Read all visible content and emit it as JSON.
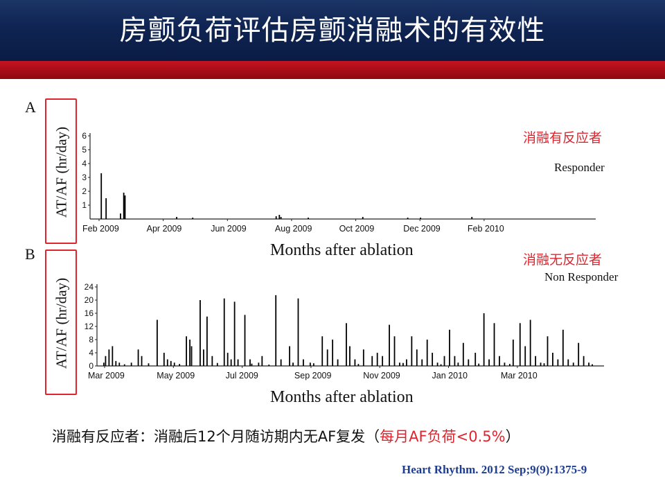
{
  "slide": {
    "title": "房颤负荷评估房颤消融术的有效性",
    "footnote_main": "消融有反应者：消融后12个月随访期内无AF复发（",
    "footnote_highlight": "每月AF负荷<0.5%",
    "footnote_end": "）",
    "citation": "Heart Rhythm. 2012 Sep;9(9):1375-9",
    "colors": {
      "title_band": "#0f2452",
      "accent_band": "#a40c16",
      "highlight": "#e0242e",
      "citation": "#1f3d8f"
    }
  },
  "chart_data": [
    {
      "type": "bar",
      "panel": "A",
      "annotation_cn": "消融有反应者",
      "annotation_en": "Responder",
      "xlabel": "Months after ablation",
      "ylabel": "AT/AF (hr/day)",
      "ylim": [
        0,
        6
      ],
      "yticks": [
        1,
        2,
        3,
        4,
        5,
        6
      ],
      "x_range_months": [
        0,
        15.5
      ],
      "xticks": [
        {
          "month": 0,
          "label": "Feb 2009"
        },
        {
          "month": 2,
          "label": "Apr 2009"
        },
        {
          "month": 4,
          "label": "Jun 2009"
        },
        {
          "month": 6,
          "label": "Aug 2009"
        },
        {
          "month": 8,
          "label": "Oct 2009"
        },
        {
          "month": 10,
          "label": "Dec 2009"
        },
        {
          "month": 12,
          "label": "Feb 2010"
        }
      ],
      "bars": [
        {
          "x": 0.35,
          "y": 3.3
        },
        {
          "x": 0.5,
          "y": 1.5
        },
        {
          "x": 0.95,
          "y": 0.4
        },
        {
          "x": 1.05,
          "y": 1.9
        },
        {
          "x": 1.09,
          "y": 1.7
        },
        {
          "x": 2.7,
          "y": 0.15
        },
        {
          "x": 3.2,
          "y": 0.1
        },
        {
          "x": 5.8,
          "y": 0.2
        },
        {
          "x": 5.9,
          "y": 0.3
        },
        {
          "x": 5.95,
          "y": 0.15
        },
        {
          "x": 6.8,
          "y": 0.1
        },
        {
          "x": 8.5,
          "y": 0.15
        },
        {
          "x": 9.9,
          "y": 0.1
        },
        {
          "x": 10.3,
          "y": 0.1
        },
        {
          "x": 11.9,
          "y": 0.15
        }
      ]
    },
    {
      "type": "bar",
      "panel": "B",
      "annotation_cn": "消融无反应者",
      "annotation_en": "Non Responder",
      "xlabel": "Months after ablation",
      "ylabel": "AT/AF (hr/day)",
      "ylim": [
        0,
        24
      ],
      "yticks": [
        0,
        4,
        8,
        12,
        16,
        20,
        24
      ],
      "x_range_months": [
        0,
        14.5
      ],
      "xticks": [
        {
          "month": 0,
          "label": "Mar 2009"
        },
        {
          "month": 2,
          "label": "May 2009"
        },
        {
          "month": 4,
          "label": "Jul 2009"
        },
        {
          "month": 6,
          "label": "Sep 2009"
        },
        {
          "month": 8,
          "label": "Nov 2009"
        },
        {
          "month": 10,
          "label": "Jan 2010"
        },
        {
          "month": 12,
          "label": "Mar 2010"
        }
      ],
      "bars": [
        {
          "x": 0.25,
          "y": 3
        },
        {
          "x": 0.35,
          "y": 5
        },
        {
          "x": 0.45,
          "y": 6
        },
        {
          "x": 0.55,
          "y": 1.5
        },
        {
          "x": 0.65,
          "y": 1
        },
        {
          "x": 1.0,
          "y": 1
        },
        {
          "x": 1.2,
          "y": 5
        },
        {
          "x": 1.3,
          "y": 3
        },
        {
          "x": 1.75,
          "y": 14
        },
        {
          "x": 1.95,
          "y": 4
        },
        {
          "x": 2.05,
          "y": 2
        },
        {
          "x": 2.15,
          "y": 1.5
        },
        {
          "x": 2.25,
          "y": 1
        },
        {
          "x": 2.6,
          "y": 9
        },
        {
          "x": 2.7,
          "y": 8
        },
        {
          "x": 2.75,
          "y": 6
        },
        {
          "x": 3.0,
          "y": 20
        },
        {
          "x": 3.1,
          "y": 5
        },
        {
          "x": 3.2,
          "y": 15
        },
        {
          "x": 3.35,
          "y": 3
        },
        {
          "x": 3.7,
          "y": 20.5
        },
        {
          "x": 3.8,
          "y": 4
        },
        {
          "x": 3.9,
          "y": 2
        },
        {
          "x": 4.0,
          "y": 19.5
        },
        {
          "x": 4.1,
          "y": 2
        },
        {
          "x": 4.3,
          "y": 15.5
        },
        {
          "x": 4.45,
          "y": 2
        },
        {
          "x": 4.7,
          "y": 1
        },
        {
          "x": 4.8,
          "y": 3
        },
        {
          "x": 5.2,
          "y": 21.5
        },
        {
          "x": 5.35,
          "y": 2
        },
        {
          "x": 5.6,
          "y": 6
        },
        {
          "x": 5.7,
          "y": 1
        },
        {
          "x": 5.85,
          "y": 20.5
        },
        {
          "x": 6.0,
          "y": 2
        },
        {
          "x": 6.2,
          "y": 1
        },
        {
          "x": 6.55,
          "y": 9
        },
        {
          "x": 6.7,
          "y": 5
        },
        {
          "x": 6.85,
          "y": 8
        },
        {
          "x": 7.0,
          "y": 2
        },
        {
          "x": 7.25,
          "y": 13
        },
        {
          "x": 7.35,
          "y": 6
        },
        {
          "x": 7.5,
          "y": 2
        },
        {
          "x": 7.75,
          "y": 5
        },
        {
          "x": 8.0,
          "y": 3
        },
        {
          "x": 8.15,
          "y": 4
        },
        {
          "x": 8.3,
          "y": 3
        },
        {
          "x": 8.5,
          "y": 12.5
        },
        {
          "x": 8.65,
          "y": 9
        },
        {
          "x": 8.8,
          "y": 1
        },
        {
          "x": 9.0,
          "y": 2
        },
        {
          "x": 9.15,
          "y": 9
        },
        {
          "x": 9.3,
          "y": 5
        },
        {
          "x": 9.45,
          "y": 2
        },
        {
          "x": 9.6,
          "y": 8
        },
        {
          "x": 9.75,
          "y": 4
        },
        {
          "x": 9.9,
          "y": 1
        },
        {
          "x": 10.1,
          "y": 3
        },
        {
          "x": 10.25,
          "y": 11
        },
        {
          "x": 10.4,
          "y": 3
        },
        {
          "x": 10.5,
          "y": 1
        },
        {
          "x": 10.65,
          "y": 7
        },
        {
          "x": 10.8,
          "y": 2
        },
        {
          "x": 11.0,
          "y": 4
        },
        {
          "x": 11.25,
          "y": 16
        },
        {
          "x": 11.4,
          "y": 2
        },
        {
          "x": 11.55,
          "y": 13
        },
        {
          "x": 11.7,
          "y": 3
        },
        {
          "x": 11.85,
          "y": 1
        },
        {
          "x": 12.1,
          "y": 8
        },
        {
          "x": 12.3,
          "y": 13
        },
        {
          "x": 12.45,
          "y": 6
        },
        {
          "x": 12.6,
          "y": 14
        },
        {
          "x": 12.75,
          "y": 3
        },
        {
          "x": 12.9,
          "y": 1
        },
        {
          "x": 13.1,
          "y": 9
        },
        {
          "x": 13.25,
          "y": 4
        },
        {
          "x": 13.4,
          "y": 2
        },
        {
          "x": 13.55,
          "y": 11
        },
        {
          "x": 13.7,
          "y": 2
        },
        {
          "x": 13.85,
          "y": 1
        },
        {
          "x": 14.0,
          "y": 7
        },
        {
          "x": 14.15,
          "y": 3
        },
        {
          "x": 14.3,
          "y": 1
        }
      ],
      "dense_low_activity": [
        {
          "x": 0.2,
          "y": 1
        },
        {
          "x": 0.8,
          "y": 0.5
        },
        {
          "x": 1.5,
          "y": 0.8
        },
        {
          "x": 2.4,
          "y": 0.6
        },
        {
          "x": 3.5,
          "y": 0.9
        },
        {
          "x": 4.5,
          "y": 0.7
        },
        {
          "x": 5.0,
          "y": 0.4
        },
        {
          "x": 6.3,
          "y": 0.8
        },
        {
          "x": 7.6,
          "y": 0.6
        },
        {
          "x": 8.9,
          "y": 0.9
        },
        {
          "x": 10.0,
          "y": 0.5
        },
        {
          "x": 11.1,
          "y": 0.7
        },
        {
          "x": 12.0,
          "y": 0.6
        },
        {
          "x": 13.0,
          "y": 0.8
        },
        {
          "x": 14.4,
          "y": 0.5
        }
      ]
    }
  ]
}
